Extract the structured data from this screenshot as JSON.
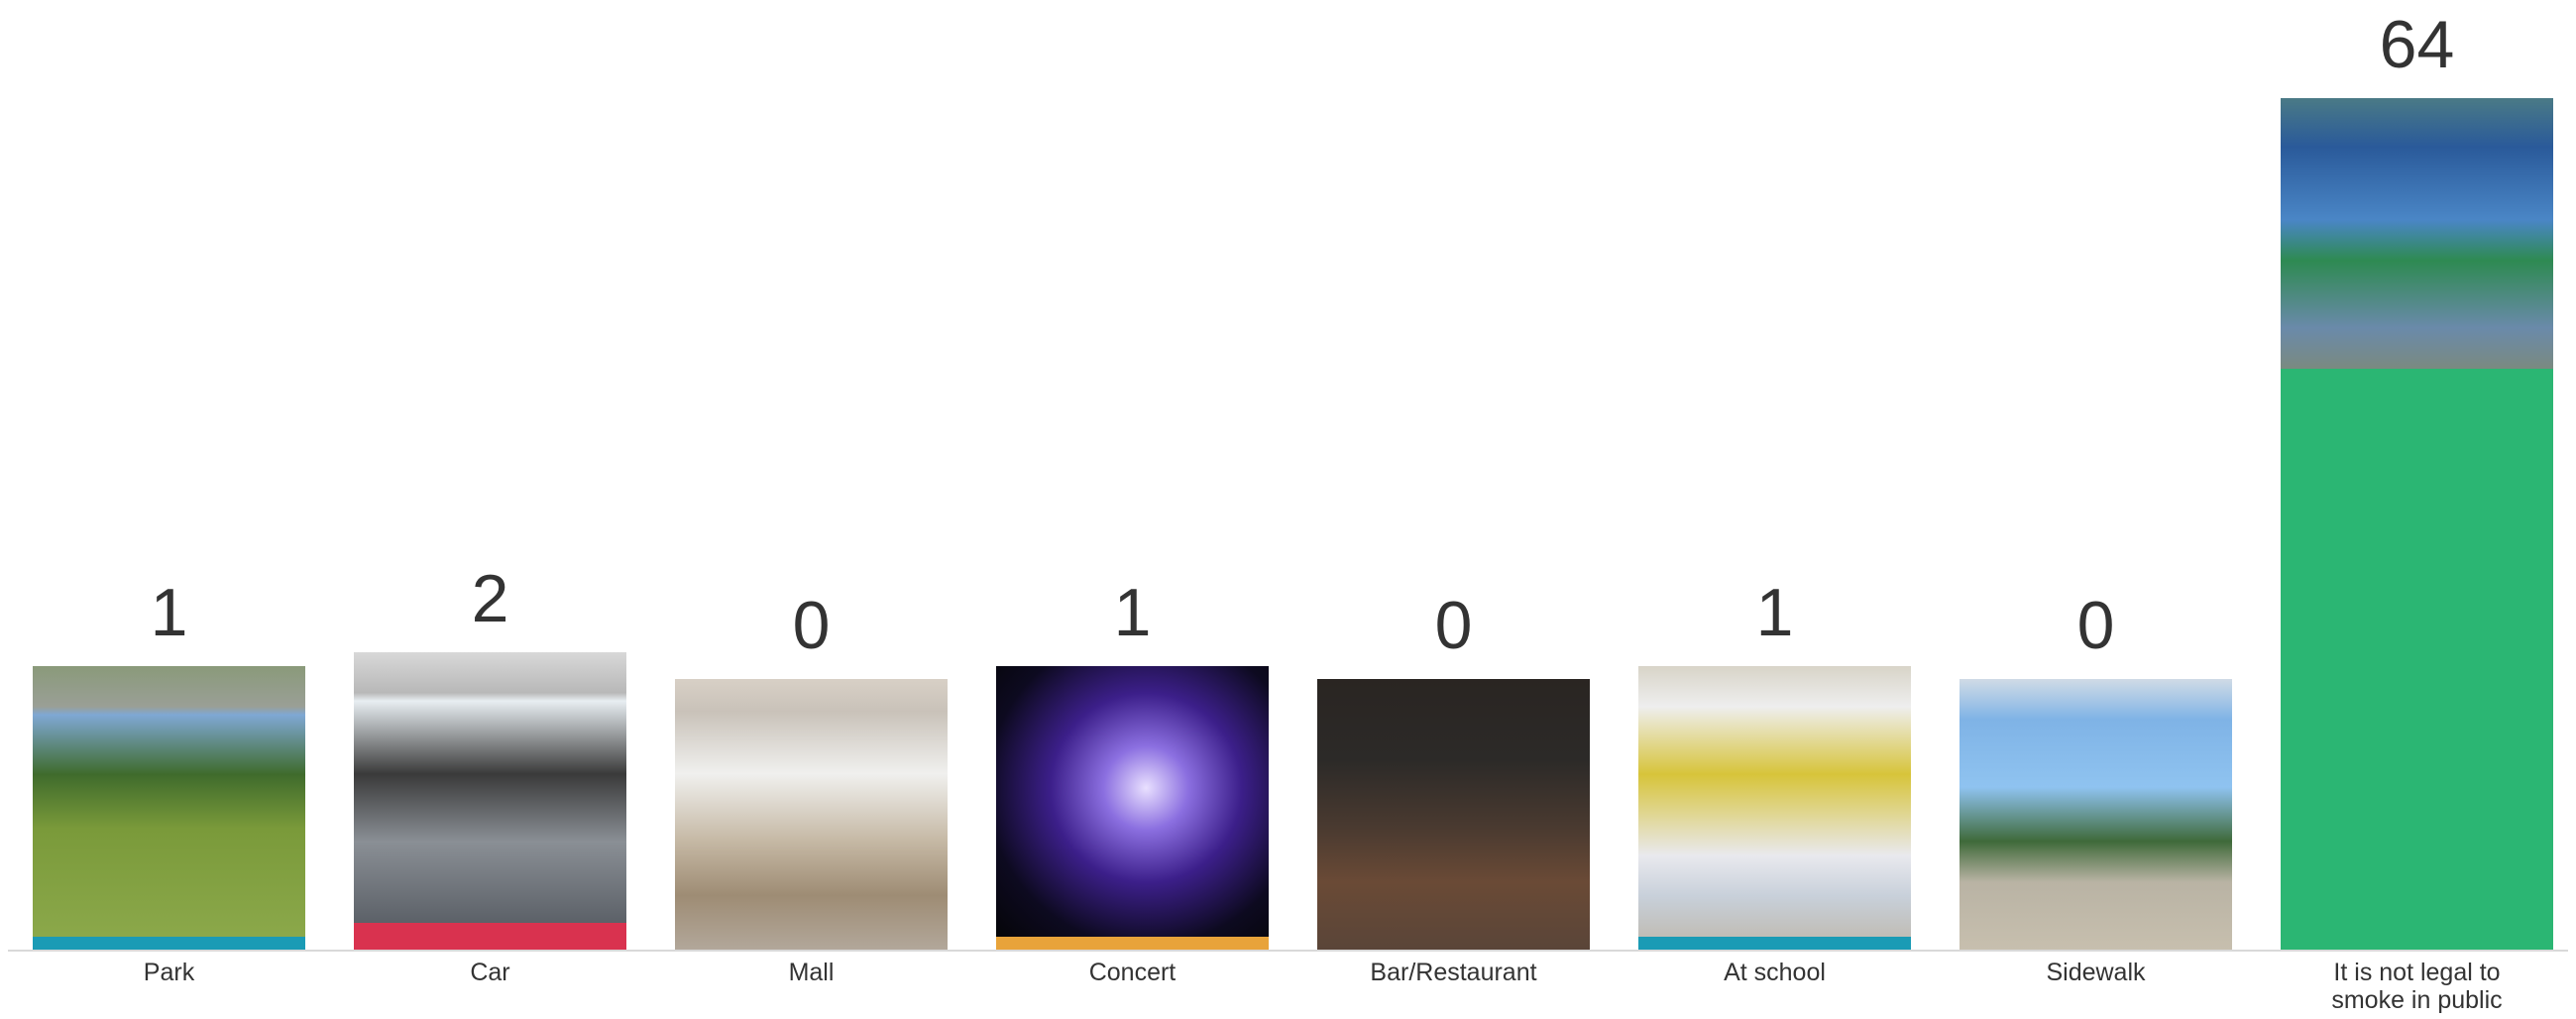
{
  "chart_data": {
    "type": "bar",
    "categories": [
      "Park",
      "Car",
      "Mall",
      "Concert",
      "Bar/Restaurant",
      "At school",
      "Sidewalk",
      "It is not legal to smoke in public"
    ],
    "values": [
      1,
      2,
      0,
      1,
      0,
      1,
      0,
      64
    ],
    "colors": [
      "#1a9bb5",
      "#d9324f",
      "#9aa3ab",
      "#e8a33a",
      "#6b6b6b",
      "#1a9bb5",
      "#9aa3ab",
      "#2bb673"
    ]
  }
}
